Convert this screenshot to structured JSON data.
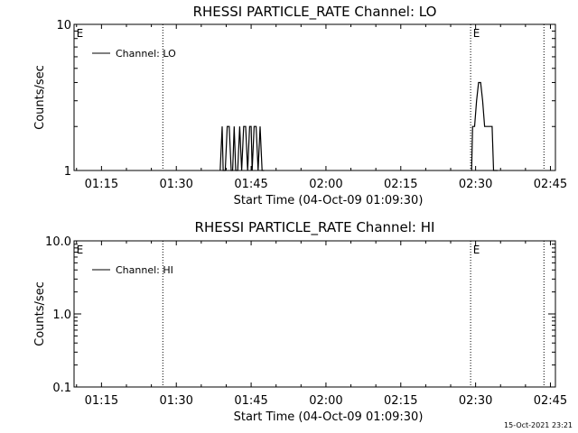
{
  "footer_timestamp": "15-Oct-2021 23:21",
  "charts": [
    {
      "type": "line",
      "title": "RHESSI PARTICLE_RATE Channel: LO",
      "xlabel": "Start Time (04-Oct-09 01:09:30)",
      "ylabel": "Counts/sec",
      "yscale": "log",
      "ylim": [
        1,
        10
      ],
      "yticks": [
        {
          "v": 1,
          "label": "1"
        },
        {
          "v": 10,
          "label": "10"
        }
      ],
      "xlim_minutes": [
        69.5,
        166
      ],
      "xticks": [
        {
          "v": 75,
          "label": "01:15"
        },
        {
          "v": 90,
          "label": "01:30"
        },
        {
          "v": 105,
          "label": "01:45"
        },
        {
          "v": 120,
          "label": "02:00"
        },
        {
          "v": 135,
          "label": "02:15"
        },
        {
          "v": 150,
          "label": "02:30"
        },
        {
          "v": 165,
          "label": "02:45"
        }
      ],
      "legend": {
        "label": "Channel: LO",
        "position": "top-left"
      },
      "vlines": [
        87.3,
        149.0,
        163.7
      ],
      "markers": [
        {
          "x": 69.8,
          "label": "E"
        },
        {
          "x": 149.3,
          "label": "E"
        }
      ],
      "series": [
        {
          "x": [
            98.8,
            99.2,
            99.4,
            99.8,
            100.2,
            100.6,
            101,
            101.3,
            101.6,
            101.9,
            102.3,
            102.7,
            103.1,
            103.5,
            103.9,
            104.3,
            104.7,
            105,
            105.2,
            105.6,
            106,
            106.4,
            106.8,
            107.2,
            107.6,
            149.2,
            149.4,
            149.8,
            150.2,
            150.6,
            151,
            151.4,
            151.8,
            152.2,
            152.6,
            153,
            153.3,
            153.6,
            154,
            154.4
          ],
          "y": [
            1,
            2,
            1,
            1,
            2,
            2,
            1,
            1,
            2,
            1,
            1,
            2,
            1,
            2,
            2,
            1,
            2,
            2,
            1,
            2,
            2,
            1,
            2,
            1,
            1,
            1,
            2,
            2,
            3,
            4,
            4,
            3,
            2,
            2,
            2,
            2,
            2,
            1,
            1,
            1
          ]
        }
      ]
    },
    {
      "type": "line",
      "title": "RHESSI PARTICLE_RATE Channel: HI",
      "xlabel": "Start Time (04-Oct-09 01:09:30)",
      "ylabel": "Counts/sec",
      "yscale": "log",
      "ylim": [
        0.1,
        10
      ],
      "yticks": [
        {
          "v": 0.1,
          "label": "0.1"
        },
        {
          "v": 1,
          "label": "1.0"
        },
        {
          "v": 10,
          "label": "10.0"
        }
      ],
      "xlim_minutes": [
        69.5,
        166
      ],
      "xticks": [
        {
          "v": 75,
          "label": "01:15"
        },
        {
          "v": 90,
          "label": "01:30"
        },
        {
          "v": 105,
          "label": "01:45"
        },
        {
          "v": 120,
          "label": "02:00"
        },
        {
          "v": 135,
          "label": "02:15"
        },
        {
          "v": 150,
          "label": "02:30"
        },
        {
          "v": 165,
          "label": "02:45"
        }
      ],
      "legend": {
        "label": "Channel: HI",
        "position": "top-left"
      },
      "vlines": [
        87.3,
        149.0,
        163.7
      ],
      "markers": [
        {
          "x": 69.8,
          "label": "E"
        },
        {
          "x": 149.3,
          "label": "E"
        }
      ],
      "series": [
        {
          "x": [],
          "y": []
        }
      ]
    }
  ]
}
